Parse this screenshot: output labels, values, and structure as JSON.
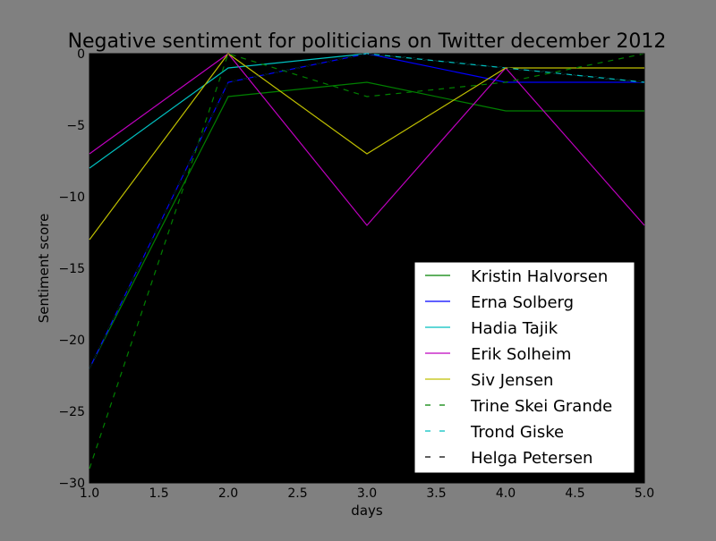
{
  "chart_data": {
    "type": "line",
    "title": "Negative sentiment for politicians on Twitter december 2012",
    "xlabel": "days",
    "ylabel": "Sentiment score",
    "xlim": [
      1.0,
      5.0
    ],
    "ylim": [
      -30,
      0
    ],
    "x_ticks": [
      "1.0",
      "1.5",
      "2.0",
      "2.5",
      "3.0",
      "3.5",
      "4.0",
      "4.5",
      "5.0"
    ],
    "y_ticks": [
      "0",
      "−5",
      "−10",
      "−15",
      "−20",
      "−25",
      "−30"
    ],
    "grid": false,
    "legend_position": "lower-right",
    "background": "#000000",
    "figure_background": "#808080",
    "x": [
      1,
      2,
      3,
      4,
      5
    ],
    "series": [
      {
        "name": "Kristin Halvorsen",
        "values": [
          -22,
          -3,
          -2,
          -4,
          -4
        ],
        "color": "#008000",
        "style": "solid"
      },
      {
        "name": "Erna Solberg",
        "values": [
          -22,
          -2,
          0,
          -2,
          -2
        ],
        "color": "#0000ff",
        "style": "solid"
      },
      {
        "name": "Hadia Tajik",
        "values": [
          -8,
          -1,
          0,
          -1,
          -2
        ],
        "color": "#00bfbf",
        "style": "solid"
      },
      {
        "name": "Erik Solheim",
        "values": [
          -7,
          0,
          -12,
          -1,
          -12
        ],
        "color": "#bf00bf",
        "style": "solid"
      },
      {
        "name": "Siv Jensen",
        "values": [
          -13,
          0,
          -7,
          -1,
          -1
        ],
        "color": "#bfbf00",
        "style": "solid"
      },
      {
        "name": "Trine Skei Grande",
        "values": [
          -29,
          0,
          -3,
          -2,
          0
        ],
        "color": "#008000",
        "style": "dashed"
      },
      {
        "name": "Trond Giske",
        "values": [
          -22,
          -2,
          0,
          -1,
          -2
        ],
        "color": "#00bfbf",
        "style": "dashed"
      },
      {
        "name": "Helga Petersen",
        "values": [
          -22,
          -2,
          0,
          -1,
          -2
        ],
        "color": "#000000",
        "style": "dashed"
      }
    ]
  }
}
